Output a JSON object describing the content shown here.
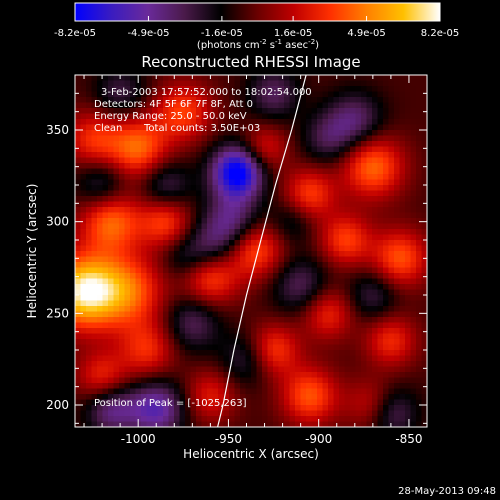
{
  "chart_data": {
    "type": "heatmap",
    "title": "Reconstructed RHESSI Image",
    "colorbar": {
      "ticks": [
        "-8.2e-05",
        "-4.9e-05",
        "-1.6e-05",
        "1.6e-05",
        "4.9e-05",
        "8.2e-05"
      ],
      "range": [
        -8.2e-05,
        8.2e-05
      ],
      "label_main": "(photons cm",
      "label_exp1": "-2",
      "label_mid": " s",
      "label_exp2": "-1",
      "label_mid2": " asec",
      "label_exp3": "-2",
      "label_end": ")",
      "colormap": [
        "#0000ff",
        "#3a1cc0",
        "#6a2a9a",
        "#4a1a4a",
        "#000000",
        "#6a0000",
        "#c00000",
        "#ff3000",
        "#ff8000",
        "#ffc000",
        "#ffffff"
      ]
    },
    "xlabel": "Heliocentric X (arcsec)",
    "ylabel": "Heliocentric Y (arcsec)",
    "xlim": [
      -1035,
      -840
    ],
    "ylim": [
      188,
      380
    ],
    "xticks": [
      -1000,
      -950,
      -900,
      -850
    ],
    "xtick_labels": [
      "-1000",
      "-950",
      "-900",
      "-850"
    ],
    "yticks": [
      200,
      250,
      300,
      350
    ],
    "ytick_labels": [
      "200",
      "250",
      "300",
      "350"
    ],
    "annotations": {
      "time_range": "3-Feb-2003 17:57:52.000 to 18:02:54.000",
      "detectors": "Detectors: 4F 5F 6F 7F 8F, Att 0",
      "energy": "Energy Range: 25.0 - 50.0 keV",
      "clean_label": "Clean",
      "total_counts": "Total counts: 3.50E+03",
      "peak": "Position of Peak = [-1025,263]"
    },
    "limb_curve": [
      {
        "x": -907,
        "y": 380
      },
      {
        "x": -915,
        "y": 350
      },
      {
        "x": -924,
        "y": 320
      },
      {
        "x": -932,
        "y": 290
      },
      {
        "x": -940,
        "y": 260
      },
      {
        "x": -947,
        "y": 230
      },
      {
        "x": -953,
        "y": 200
      },
      {
        "x": -956,
        "y": 188
      }
    ],
    "blobs": [
      {
        "x": -1030,
        "y": 262,
        "v": 8.2e-05,
        "r": 14
      },
      {
        "x": -1005,
        "y": 262,
        "v": 4.5e-05,
        "r": 14
      },
      {
        "x": -1015,
        "y": 300,
        "v": 5e-05,
        "r": 12
      },
      {
        "x": -1000,
        "y": 340,
        "v": 5e-05,
        "r": 12
      },
      {
        "x": -1025,
        "y": 345,
        "v": 3.5e-05,
        "r": 11
      },
      {
        "x": -975,
        "y": 360,
        "v": 4e-05,
        "r": 11
      },
      {
        "x": -985,
        "y": 300,
        "v": 4e-05,
        "r": 10
      },
      {
        "x": -960,
        "y": 270,
        "v": 4.5e-05,
        "r": 11
      },
      {
        "x": -935,
        "y": 285,
        "v": 4.5e-05,
        "r": 11
      },
      {
        "x": -925,
        "y": 230,
        "v": 4e-05,
        "r": 10
      },
      {
        "x": -995,
        "y": 230,
        "v": 3.5e-05,
        "r": 11
      },
      {
        "x": -1020,
        "y": 215,
        "v": 3.5e-05,
        "r": 10
      },
      {
        "x": -930,
        "y": 340,
        "v": 3e-05,
        "r": 9
      },
      {
        "x": -905,
        "y": 315,
        "v": 4e-05,
        "r": 10
      },
      {
        "x": -870,
        "y": 330,
        "v": 5e-05,
        "r": 12
      },
      {
        "x": -885,
        "y": 290,
        "v": 4e-05,
        "r": 10
      },
      {
        "x": -855,
        "y": 280,
        "v": 4.5e-05,
        "r": 11
      },
      {
        "x": -895,
        "y": 250,
        "v": 3.5e-05,
        "r": 10
      },
      {
        "x": -860,
        "y": 235,
        "v": 3.5e-05,
        "r": 10
      },
      {
        "x": -905,
        "y": 205,
        "v": 4.5e-05,
        "r": 11
      },
      {
        "x": -870,
        "y": 200,
        "v": 3e-05,
        "r": 10
      },
      {
        "x": -960,
        "y": 205,
        "v": 3e-05,
        "r": 10
      },
      {
        "x": -945,
        "y": 327,
        "v": -8.2e-05,
        "r": 10
      },
      {
        "x": -948,
        "y": 300,
        "v": -4e-05,
        "r": 11
      },
      {
        "x": -960,
        "y": 285,
        "v": -3e-05,
        "r": 10
      },
      {
        "x": -990,
        "y": 198,
        "v": -5e-05,
        "r": 11
      },
      {
        "x": -1015,
        "y": 198,
        "v": -4e-05,
        "r": 10
      },
      {
        "x": -860,
        "y": 196,
        "v": -3.5e-05,
        "r": 10
      },
      {
        "x": -970,
        "y": 245,
        "v": -3e-05,
        "r": 11
      },
      {
        "x": -910,
        "y": 265,
        "v": -3e-05,
        "r": 11
      },
      {
        "x": -880,
        "y": 355,
        "v": -3.5e-05,
        "r": 11
      },
      {
        "x": -1010,
        "y": 370,
        "v": -2.5e-05,
        "r": 10
      },
      {
        "x": -925,
        "y": 370,
        "v": -3e-05,
        "r": 10
      },
      {
        "x": -895,
        "y": 345,
        "v": -2.5e-05,
        "r": 10
      },
      {
        "x": -1020,
        "y": 320,
        "v": -3e-05,
        "r": 10
      },
      {
        "x": -985,
        "y": 320,
        "v": -3e-05,
        "r": 10
      },
      {
        "x": -940,
        "y": 225,
        "v": -2.5e-05,
        "r": 10
      },
      {
        "x": -915,
        "y": 300,
        "v": -2e-05,
        "r": 9
      },
      {
        "x": -870,
        "y": 260,
        "v": -2.5e-05,
        "r": 10
      },
      {
        "x": -975,
        "y": 280,
        "v": -2e-05,
        "r": 9
      }
    ]
  },
  "footer": {
    "timestamp": "28-May-2013 09:48"
  }
}
